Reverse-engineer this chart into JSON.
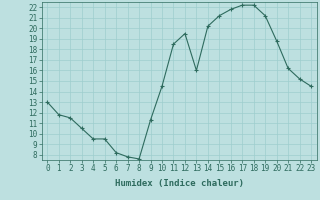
{
  "x": [
    0,
    1,
    2,
    3,
    4,
    5,
    6,
    7,
    8,
    9,
    10,
    11,
    12,
    13,
    14,
    15,
    16,
    17,
    18,
    19,
    20,
    21,
    22,
    23
  ],
  "y": [
    13,
    11.8,
    11.5,
    10.5,
    9.5,
    9.5,
    8.2,
    7.8,
    7.6,
    11.3,
    14.5,
    18.5,
    19.5,
    16.0,
    20.2,
    21.2,
    21.8,
    22.2,
    22.2,
    21.2,
    18.8,
    16.2,
    15.2,
    14.5
  ],
  "line_color": "#2e6b5e",
  "marker": "+",
  "marker_size": 3,
  "marker_lw": 0.8,
  "bg_color": "#bde0e0",
  "grid_color": "#9ecece",
  "xlabel": "Humidex (Indice chaleur)",
  "xlim": [
    -0.5,
    23.5
  ],
  "ylim": [
    7.5,
    22.5
  ],
  "yticks": [
    8,
    9,
    10,
    11,
    12,
    13,
    14,
    15,
    16,
    17,
    18,
    19,
    20,
    21,
    22
  ],
  "xticks": [
    0,
    1,
    2,
    3,
    4,
    5,
    6,
    7,
    8,
    9,
    10,
    11,
    12,
    13,
    14,
    15,
    16,
    17,
    18,
    19,
    20,
    21,
    22,
    23
  ],
  "tick_color": "#2e6b5e",
  "label_fontsize": 6.5,
  "tick_fontsize": 5.5,
  "line_width": 0.8
}
